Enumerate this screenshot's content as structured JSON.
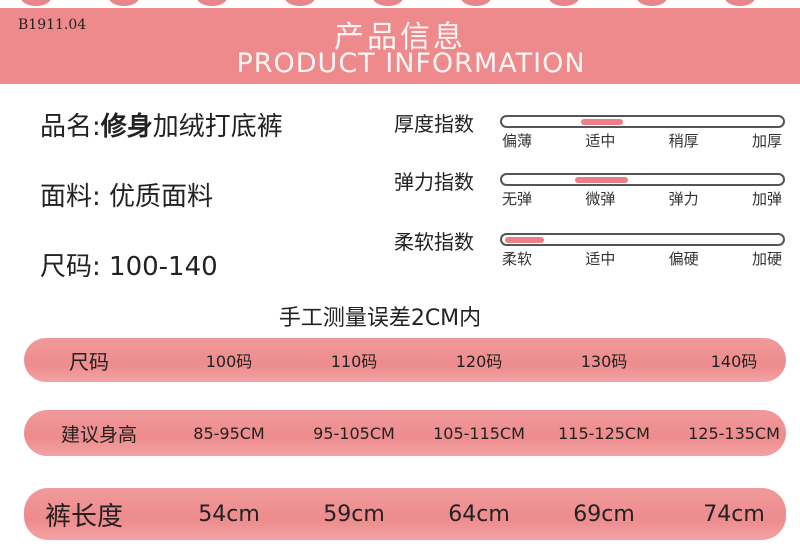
{
  "product_code": "B1911.04",
  "header": {
    "title_cn": "产品信息",
    "title_en": "PRODUCT INFORMATION"
  },
  "info": {
    "name_label": "品名:",
    "name_bold": "修身",
    "name_rest": "加绒打底裤",
    "fabric_label": "面料:",
    "fabric_value": "优质面料",
    "size_label": "尺码:",
    "size_value": "100-140"
  },
  "indices": [
    {
      "label": "厚度指数",
      "ticks": [
        "偏薄",
        "适中",
        "稍厚",
        "加厚"
      ],
      "fill_start": 0.28,
      "fill_end": 0.43
    },
    {
      "label": "弹力指数",
      "ticks": [
        "无弹",
        "微弹",
        "弹力",
        "加弹"
      ],
      "fill_start": 0.26,
      "fill_end": 0.45
    },
    {
      "label": "柔软指数",
      "ticks": [
        "柔软",
        "适中",
        "偏硬",
        "加硬"
      ],
      "fill_start": 0.01,
      "fill_end": 0.15
    }
  ],
  "note": "手工测量误差2CM内",
  "table": {
    "rows": [
      {
        "header": "尺码",
        "cells": [
          "100码",
          "110码",
          "120码",
          "130码",
          "140码"
        ]
      },
      {
        "header": "建议身高",
        "cells": [
          "85-95CM",
          "95-105CM",
          "105-115CM",
          "115-125CM",
          "125-135CM"
        ]
      },
      {
        "header": "裤长度",
        "cells": [
          "54cm",
          "59cm",
          "64cm",
          "69cm",
          "74cm"
        ]
      }
    ]
  },
  "colors": {
    "accent": "#ef8a8c",
    "fill": "#ec7f85"
  }
}
